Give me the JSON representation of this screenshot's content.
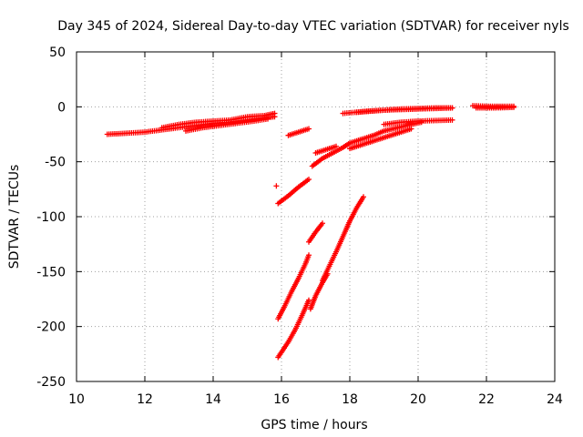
{
  "chart_data": {
    "type": "scatter",
    "title": "Day 345 of 2024, Sidereal Day-to-day VTEC variation (SDTVAR) for receiver nyls",
    "xlabel": "GPS time / hours",
    "ylabel": "SDTVAR / TECUs",
    "xlim": [
      10,
      24
    ],
    "ylim": [
      -250,
      50
    ],
    "xticks": [
      "10",
      "12",
      "14",
      "16",
      "18",
      "20",
      "22",
      "24"
    ],
    "yticks": [
      "-250",
      "-200",
      "-150",
      "-100",
      "-50",
      "0",
      "50"
    ],
    "grid": true,
    "marker": "+",
    "color": "#ff0000",
    "series": [
      {
        "x": [
          10.9,
          11.5,
          12.0,
          12.5,
          13.0,
          13.5,
          14.0,
          14.5,
          15.0,
          15.5,
          15.8
        ],
        "y": [
          -25,
          -24,
          -23,
          -21,
          -19,
          -17,
          -15,
          -14,
          -12,
          -10,
          -9
        ]
      },
      {
        "x": [
          12.5,
          13.0,
          13.5,
          14.0,
          14.5,
          15.0,
          15.5,
          15.8
        ],
        "y": [
          -19,
          -16,
          -14,
          -13,
          -12,
          -9,
          -8,
          -6
        ]
      },
      {
        "x": [
          13.2,
          13.7,
          14.2,
          14.7,
          15.2,
          15.6
        ],
        "y": [
          -22,
          -19,
          -17,
          -15,
          -13,
          -11
        ]
      },
      {
        "x": [
          16.2,
          16.5,
          16.8
        ],
        "y": [
          -26,
          -23,
          -20
        ]
      },
      {
        "x": [
          17.8,
          18.5,
          19.0,
          19.5,
          20.0,
          20.5,
          21.0
        ],
        "y": [
          -6,
          -4,
          -3,
          -2,
          -1.5,
          -1,
          -1
        ]
      },
      {
        "x": [
          18.2,
          19.0,
          19.5,
          20.0,
          20.5,
          21.0
        ],
        "y": [
          -5,
          -3,
          -2.5,
          -2,
          -1.5,
          -1
        ]
      },
      {
        "x": [
          19.0,
          19.5,
          20.0,
          20.5,
          21.0
        ],
        "y": [
          -16,
          -14,
          -13,
          -12.5,
          -12
        ]
      },
      {
        "x": [
          21.6,
          22.0,
          22.4,
          22.8
        ],
        "y": [
          1,
          0.5,
          0.5,
          0.5
        ]
      },
      {
        "x": [
          21.7,
          22.2,
          22.8
        ],
        "y": [
          -1,
          -1,
          -0.5
        ]
      },
      {
        "x": [
          17.0,
          17.3,
          17.6
        ],
        "y": [
          -42,
          -39,
          -36
        ]
      },
      {
        "x": [
          16.9,
          17.2,
          17.5,
          17.8,
          18.0,
          18.3,
          18.7,
          19.0,
          19.4,
          19.8,
          20.1
        ],
        "y": [
          -54,
          -47,
          -42,
          -37,
          -33,
          -30,
          -26,
          -22,
          -19,
          -16,
          -14
        ]
      },
      {
        "x": [
          18.0,
          18.3,
          18.7,
          19.1,
          19.5,
          19.8
        ],
        "y": [
          -38,
          -35,
          -31,
          -27,
          -23,
          -20
        ]
      },
      {
        "x": [
          15.85
        ],
        "y": [
          -72
        ]
      },
      {
        "x": [
          15.9,
          16.2,
          16.5,
          16.8
        ],
        "y": [
          -88,
          -81,
          -73,
          -66
        ]
      },
      {
        "x": [
          15.9,
          16.1,
          16.3,
          16.5,
          16.7,
          16.8
        ],
        "y": [
          -193,
          -181,
          -168,
          -156,
          -143,
          -135
        ]
      },
      {
        "x": [
          15.9,
          16.2,
          16.4,
          16.6,
          16.8
        ],
        "y": [
          -228,
          -214,
          -203,
          -190,
          -176
        ]
      },
      {
        "x": [
          16.8,
          17.0,
          17.2
        ],
        "y": [
          -123,
          -114,
          -106
        ]
      },
      {
        "x": [
          16.85,
          17.0,
          17.2,
          17.35
        ],
        "y": [
          -184,
          -172,
          -160,
          -152
        ]
      },
      {
        "x": [
          17.2,
          17.4,
          17.6,
          17.8,
          18.0,
          18.2,
          18.4
        ],
        "y": [
          -158,
          -145,
          -132,
          -118,
          -104,
          -92,
          -82
        ]
      }
    ]
  }
}
